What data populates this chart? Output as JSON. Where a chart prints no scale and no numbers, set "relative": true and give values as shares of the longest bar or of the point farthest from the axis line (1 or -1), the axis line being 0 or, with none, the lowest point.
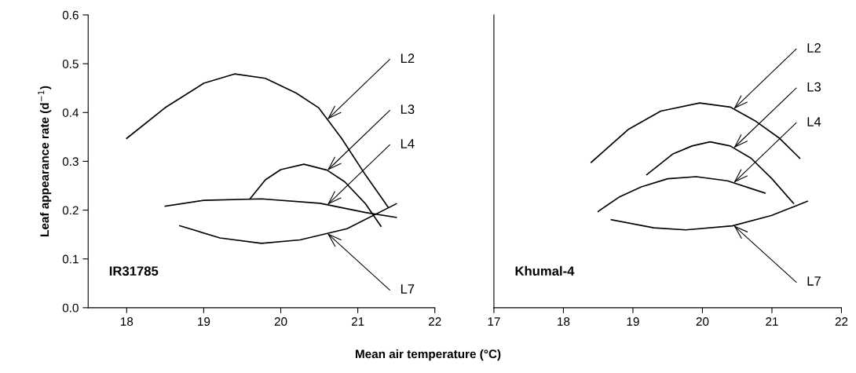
{
  "chart_data": [
    {
      "type": "line",
      "xlabel": "Mean air temperature (°C)",
      "ylabel": "Leaf appearance rate (d$^{−1}$)",
      "xlim": [
        17.5,
        22
      ],
      "xticks": [
        18,
        19,
        20,
        21,
        22
      ],
      "ylim": [
        0,
        0.6
      ],
      "yticks": [
        {
          "value": 0,
          "label": "0.0"
        },
        0.1,
        0.2,
        0.3,
        0.4,
        0.5,
        0.6
      ],
      "grid": false,
      "legend": false,
      "marker": "none",
      "line_style": "solid",
      "series": [
        {
          "name": "L2",
          "color": "#000000",
          "x": [
            18.0,
            18.5,
            19.0,
            19.4,
            19.8,
            20.2,
            20.49,
            20.79,
            21.1,
            21.39
          ],
          "values": [
            0.347,
            0.41,
            0.46,
            0.479,
            0.47,
            0.44,
            0.41,
            0.347,
            0.272,
            0.207
          ]
        },
        {
          "name": "L3",
          "color": "#000000",
          "x": [
            19.6,
            19.8,
            20.0,
            20.3,
            20.6,
            20.83,
            21.1,
            21.3
          ],
          "values": [
            0.223,
            0.262,
            0.283,
            0.294,
            0.282,
            0.258,
            0.213,
            0.167
          ]
        },
        {
          "name": "L4",
          "color": "#000000",
          "x": [
            18.5,
            19.0,
            19.75,
            20.51,
            21.1,
            21.5
          ],
          "values": [
            0.208,
            0.22,
            0.223,
            0.214,
            0.195,
            0.185
          ]
        },
        {
          "name": "L7",
          "color": "#000000",
          "x": [
            18.69,
            19.21,
            19.75,
            20.25,
            20.86,
            21.5
          ],
          "values": [
            0.168,
            0.143,
            0.132,
            0.139,
            0.162,
            0.213
          ]
        }
      ],
      "annotations": [
        "IR31785"
      ]
    },
    {
      "type": "line",
      "relative": true,
      "xlim": [
        17,
        22
      ],
      "xticks": [
        17,
        18,
        19,
        20,
        21,
        22
      ],
      "tick_labels": "x",
      "grid": false,
      "legend": false,
      "marker": "none",
      "line_style": "solid",
      "series": [
        {
          "name": "L2",
          "color": "#000000",
          "x": [
            18.4,
            18.93,
            19.4,
            19.96,
            20.4,
            20.77,
            21.1,
            21.4
          ],
          "values": [
            0.71,
            0.87,
            0.96,
            1.0,
            0.98,
            0.91,
            0.83,
            0.73
          ]
        },
        {
          "name": "L3",
          "color": "#000000",
          "x": [
            19.2,
            19.57,
            19.85,
            20.11,
            20.4,
            20.7,
            21.0,
            21.31
          ],
          "values": [
            0.65,
            0.75,
            0.79,
            0.81,
            0.79,
            0.73,
            0.63,
            0.51
          ]
        },
        {
          "name": "L4",
          "color": "#000000",
          "x": [
            18.5,
            18.8,
            19.12,
            19.5,
            19.91,
            20.36,
            20.9
          ],
          "values": [
            0.47,
            0.54,
            0.59,
            0.63,
            0.64,
            0.62,
            0.56
          ]
        },
        {
          "name": "L7",
          "color": "#000000",
          "x": [
            18.69,
            19.3,
            19.76,
            20.43,
            20.99,
            21.51
          ],
          "values": [
            0.43,
            0.39,
            0.38,
            0.4,
            0.45,
            0.52
          ]
        }
      ],
      "annotations": [
        "Khumal-4"
      ]
    }
  ]
}
